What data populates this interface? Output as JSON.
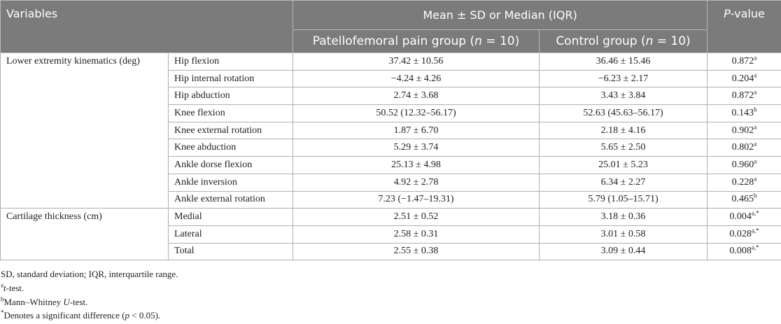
{
  "header": {
    "variables": [
      {
        "t": "Variables"
      }
    ],
    "mean": [
      {
        "t": "Mean ± SD or Median (IQR)"
      }
    ],
    "p_value": [
      {
        "i": "P"
      },
      {
        "t": "-value"
      }
    ],
    "pfp": [
      {
        "t": "Patellofemoral pain group ("
      },
      {
        "i": "n"
      },
      {
        "t": " = 10)"
      }
    ],
    "control": [
      {
        "t": "Control group ("
      },
      {
        "i": "n"
      },
      {
        "t": " = 10)"
      }
    ]
  },
  "table": {
    "groups": [
      {
        "label": "Lower extremity kinematics (deg)",
        "rows": [
          {
            "variable": "Hip flexion",
            "pfp": "37.42 ± 10.56",
            "control": "36.46 ± 15.46",
            "p": "0.872",
            "p_note": "a"
          },
          {
            "variable": "Hip internal rotation",
            "pfp": "−4.24 ± 4.26",
            "control": "−6.23 ± 2.17",
            "p": "0.204",
            "p_note": "a"
          },
          {
            "variable": "Hip abduction",
            "pfp": "2.74 ± 3.68",
            "control": "3.43 ± 3.84",
            "p": "0.872",
            "p_note": "a"
          },
          {
            "variable": "Knee flexion",
            "pfp": "50.52 (12.32–56.17)",
            "control": "52.63 (45.63–56.17)",
            "p": "0.143",
            "p_note": "b"
          },
          {
            "variable": "Knee external rotation",
            "pfp": "1.87 ± 6.70",
            "control": "2.18 ± 4.16",
            "p": "0.902",
            "p_note": "a"
          },
          {
            "variable": "Knee abduction",
            "pfp": "5.29 ± 3.74",
            "control": "5.65 ± 2.50",
            "p": "0.802",
            "p_note": "a"
          },
          {
            "variable": "Ankle dorse flexion",
            "pfp": "25.13 ± 4.98",
            "control": "25.01 ± 5.23",
            "p": "0.960",
            "p_note": "a"
          },
          {
            "variable": "Ankle inversion",
            "pfp": "4.92 ± 2.78",
            "control": "6.34 ± 2.27",
            "p": "0.228",
            "p_note": "a"
          },
          {
            "variable": "Ankle external rotation",
            "pfp": "7.23 (−1.47–19.31)",
            "control": "5.79 (1.05–15.71)",
            "p": "0.465",
            "p_note": "b"
          }
        ]
      },
      {
        "label": "Cartilage thickness (cm)",
        "rows": [
          {
            "variable": "Medial",
            "pfp": "2.51 ± 0.52",
            "control": "3.18 ± 0.36",
            "p": "0.004",
            "p_note": "a,*"
          },
          {
            "variable": "Lateral",
            "pfp": "2.58 ± 0.31",
            "control": "3.01 ± 0.58",
            "p": "0.028",
            "p_note": "a,*"
          },
          {
            "variable": "Total",
            "pfp": "2.55 ± 0.38",
            "control": "3.09 ± 0.44",
            "p": "0.008",
            "p_note": "a,*"
          }
        ]
      }
    ]
  },
  "footnotes": [
    [
      {
        "t": "SD, standard deviation; IQR, interquartile range."
      }
    ],
    [
      {
        "sup": "a"
      },
      {
        "i": "t"
      },
      {
        "t": "-test."
      }
    ],
    [
      {
        "sup": "b"
      },
      {
        "t": "Mann–Whitney "
      },
      {
        "i": "U"
      },
      {
        "t": "-test."
      }
    ],
    [
      {
        "sup": "*"
      },
      {
        "t": "Denotes a significant difference ("
      },
      {
        "i": "p"
      },
      {
        "t": " < 0.05)."
      }
    ]
  ]
}
